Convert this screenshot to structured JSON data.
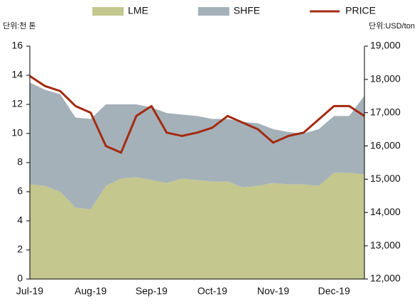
{
  "chart_data": {
    "type": "area",
    "stacked": true,
    "y_label": "단위:천 톤",
    "y2_label": "단위:USD/ton",
    "categories": [
      "Jul-19",
      null,
      null,
      null,
      "Aug-19",
      null,
      null,
      null,
      "Sep-19",
      null,
      null,
      null,
      "Oct-19",
      null,
      null,
      null,
      "Nov-19",
      null,
      null,
      null,
      "Dec-19",
      null,
      null
    ],
    "series": [
      {
        "name": "LME",
        "color": "#c4c78e",
        "values": [
          6.5,
          6.4,
          6.0,
          4.9,
          4.8,
          6.4,
          6.9,
          7.0,
          6.8,
          6.6,
          6.9,
          6.8,
          6.7,
          6.7,
          6.3,
          6.4,
          6.6,
          6.5,
          6.5,
          6.4,
          7.3,
          7.3,
          7.2
        ]
      },
      {
        "name": "SHFE",
        "color": "#a5b1b9",
        "values": [
          7.0,
          6.6,
          6.7,
          6.2,
          6.2,
          5.6,
          5.1,
          5.0,
          5.0,
          4.8,
          4.4,
          4.4,
          4.3,
          4.3,
          4.5,
          4.3,
          3.7,
          3.6,
          3.5,
          3.9,
          3.9,
          3.9,
          5.4
        ]
      },
      {
        "name": "PRICE",
        "color": "#a32a10",
        "type": "line",
        "axis": "y2",
        "values": [
          18100,
          17800,
          17650,
          17200,
          17000,
          16000,
          15800,
          16900,
          17200,
          16400,
          16300,
          16400,
          16550,
          16900,
          16700,
          16500,
          16100,
          16300,
          16400,
          16800,
          17200,
          17200,
          16900
        ]
      }
    ],
    "ylim": [
      0,
      16
    ],
    "yticks": [
      0,
      2,
      4,
      6,
      8,
      10,
      12,
      14,
      16
    ],
    "y2lim": [
      12000,
      19000
    ],
    "y2ticks": [
      {
        "value": 12000,
        "label": "12,000"
      },
      {
        "value": 13000,
        "label": "13,000"
      },
      {
        "value": 14000,
        "label": "14,000"
      },
      {
        "value": 15000,
        "label": "15,000"
      },
      {
        "value": 16000,
        "label": "16,000"
      },
      {
        "value": 17000,
        "label": "17,000"
      },
      {
        "value": 18000,
        "label": "18,000"
      },
      {
        "value": 19000,
        "label": "19,000"
      }
    ],
    "legend": "top",
    "grid": false
  }
}
